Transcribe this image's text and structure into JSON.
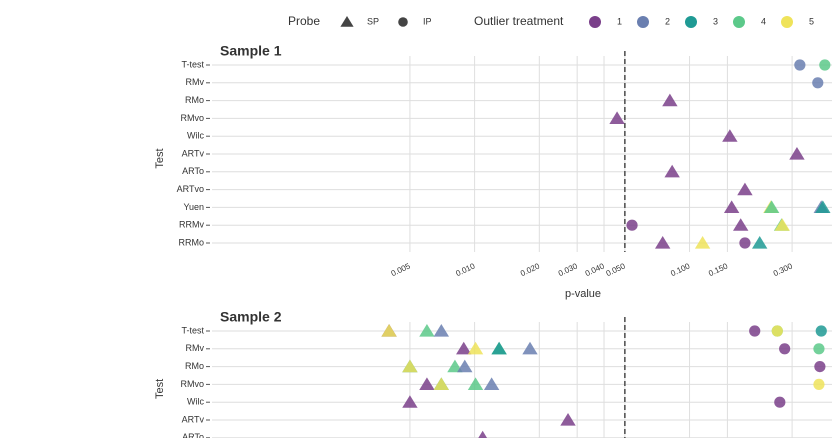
{
  "legend": {
    "probe_title": "Probe",
    "probes": [
      {
        "name": "SP",
        "shape": "triangle"
      },
      {
        "name": "IP",
        "shape": "circle"
      }
    ],
    "treatment_title": "Outlier treatment",
    "treatments": [
      {
        "name": "1",
        "color": "#7a3f8a"
      },
      {
        "name": "2",
        "color": "#6a7fb0"
      },
      {
        "name": "3",
        "color": "#1f9a94"
      },
      {
        "name": "4",
        "color": "#5cc98a"
      },
      {
        "name": "5",
        "color": "#efe35a"
      }
    ]
  },
  "chart_data": [
    {
      "type": "scatter",
      "title": "Sample 1",
      "xlabel": "p-value",
      "ylabel": "Test",
      "log_x": true,
      "grid": true,
      "threshold": 0.05,
      "xlim": [
        0.0006,
        0.46
      ],
      "xticks": [
        0.005,
        {
          "value": 0.01,
          "label": "0.010"
        },
        {
          "value": 0.02,
          "label": "0.020"
        },
        {
          "value": 0.03,
          "label": "0.030"
        },
        {
          "value": 0.04,
          "label": "0.040"
        },
        {
          "value": 0.05,
          "label": "0.050"
        },
        {
          "value": 0.1,
          "label": "0.100"
        },
        {
          "value": 0.15,
          "label": "0.150"
        },
        {
          "value": 0.3,
          "label": "0.300"
        }
      ],
      "categories": [
        "T-test",
        "RMv",
        "RMo",
        "RMvo",
        "Wilc",
        "ARTv",
        "ARTo",
        "ARTvo",
        "Yuen",
        "RRMv",
        "RRMo"
      ],
      "points": [
        {
          "test": "T-test",
          "p": 0.326,
          "probe": "IP",
          "treatment": "2"
        },
        {
          "test": "T-test",
          "p": 0.426,
          "probe": "IP",
          "treatment": "4"
        },
        {
          "test": "RMv",
          "p": 0.395,
          "probe": "IP",
          "treatment": "2"
        },
        {
          "test": "RMo",
          "p": 0.081,
          "probe": "SP",
          "treatment": "1"
        },
        {
          "test": "RMvo",
          "p": 0.046,
          "probe": "SP",
          "treatment": "1"
        },
        {
          "test": "Wilc",
          "p": 0.154,
          "probe": "SP",
          "treatment": "1"
        },
        {
          "test": "ARTv",
          "p": 0.316,
          "probe": "SP",
          "treatment": "1"
        },
        {
          "test": "ARTo",
          "p": 0.083,
          "probe": "SP",
          "treatment": "1"
        },
        {
          "test": "ARTvo",
          "p": 0.181,
          "probe": "SP",
          "treatment": "1"
        },
        {
          "test": "Yuen",
          "p": 0.157,
          "probe": "SP",
          "treatment": "1"
        },
        {
          "test": "Yuen",
          "p": 0.239,
          "probe": "SP",
          "treatment": "5"
        },
        {
          "test": "Yuen",
          "p": 0.241,
          "probe": "SP",
          "treatment": "4"
        },
        {
          "test": "Yuen",
          "p": 0.41,
          "probe": "SP",
          "treatment": "2"
        },
        {
          "test": "Yuen",
          "p": 0.417,
          "probe": "SP",
          "treatment": "3"
        },
        {
          "test": "RRMv",
          "p": 0.054,
          "probe": "IP",
          "treatment": "1"
        },
        {
          "test": "RRMv",
          "p": 0.173,
          "probe": "SP",
          "treatment": "1"
        },
        {
          "test": "RRMv",
          "p": 0.268,
          "probe": "SP",
          "treatment": "4"
        },
        {
          "test": "RRMv",
          "p": 0.27,
          "probe": "SP",
          "treatment": "5"
        },
        {
          "test": "RRMo",
          "p": 0.075,
          "probe": "SP",
          "treatment": "1"
        },
        {
          "test": "RRMo",
          "p": 0.115,
          "probe": "SP",
          "treatment": "5"
        },
        {
          "test": "RRMo",
          "p": 0.181,
          "probe": "IP",
          "treatment": "1"
        },
        {
          "test": "RRMo",
          "p": 0.212,
          "probe": "SP",
          "treatment": "3"
        }
      ]
    },
    {
      "type": "scatter",
      "title": "Sample 2",
      "ylabel": "Test",
      "log_x": true,
      "grid": true,
      "threshold": 0.05,
      "xlim": [
        0.0006,
        0.46
      ],
      "categories": [
        "T-test",
        "RMv",
        "RMo",
        "RMvo",
        "Wilc",
        "ARTv",
        "ARTo"
      ],
      "points": [
        {
          "test": "T-test",
          "p": 0.004,
          "probe": "SP",
          "treatment": "1"
        },
        {
          "test": "T-test",
          "p": 0.004,
          "probe": "SP",
          "treatment": "5"
        },
        {
          "test": "T-test",
          "p": 0.006,
          "probe": "SP",
          "treatment": "4"
        },
        {
          "test": "T-test",
          "p": 0.007,
          "probe": "SP",
          "treatment": "2"
        },
        {
          "test": "T-test",
          "p": 0.201,
          "probe": "IP",
          "treatment": "1"
        },
        {
          "test": "T-test",
          "p": 0.256,
          "probe": "IP",
          "treatment": "4"
        },
        {
          "test": "T-test",
          "p": 0.256,
          "probe": "IP",
          "treatment": "5"
        },
        {
          "test": "T-test",
          "p": 0.41,
          "probe": "IP",
          "treatment": "3"
        },
        {
          "test": "RMv",
          "p": 0.0089,
          "probe": "SP",
          "treatment": "1"
        },
        {
          "test": "RMv",
          "p": 0.0101,
          "probe": "SP",
          "treatment": "5"
        },
        {
          "test": "RMv",
          "p": 0.013,
          "probe": "SP",
          "treatment": "4"
        },
        {
          "test": "RMv",
          "p": 0.013,
          "probe": "SP",
          "treatment": "3"
        },
        {
          "test": "RMv",
          "p": 0.0181,
          "probe": "SP",
          "treatment": "2"
        },
        {
          "test": "RMv",
          "p": 0.277,
          "probe": "IP",
          "treatment": "1"
        },
        {
          "test": "RMv",
          "p": 0.4,
          "probe": "IP",
          "treatment": "4"
        },
        {
          "test": "RMo",
          "p": 0.005,
          "probe": "SP",
          "treatment": "3"
        },
        {
          "test": "RMo",
          "p": 0.005,
          "probe": "SP",
          "treatment": "5"
        },
        {
          "test": "RMo",
          "p": 0.0081,
          "probe": "SP",
          "treatment": "4"
        },
        {
          "test": "RMo",
          "p": 0.009,
          "probe": "SP",
          "treatment": "2"
        },
        {
          "test": "RMo",
          "p": 0.404,
          "probe": "IP",
          "treatment": "1"
        },
        {
          "test": "RMvo",
          "p": 0.006,
          "probe": "SP",
          "treatment": "1"
        },
        {
          "test": "RMvo",
          "p": 0.007,
          "probe": "SP",
          "treatment": "3"
        },
        {
          "test": "RMvo",
          "p": 0.007,
          "probe": "SP",
          "treatment": "5"
        },
        {
          "test": "RMvo",
          "p": 0.0101,
          "probe": "SP",
          "treatment": "4"
        },
        {
          "test": "RMvo",
          "p": 0.012,
          "probe": "SP",
          "treatment": "2"
        },
        {
          "test": "RMvo",
          "p": 0.4,
          "probe": "IP",
          "treatment": "5"
        },
        {
          "test": "Wilc",
          "p": 0.005,
          "probe": "SP",
          "treatment": "1"
        },
        {
          "test": "Wilc",
          "p": 0.263,
          "probe": "IP",
          "treatment": "1"
        },
        {
          "test": "ARTv",
          "p": 0.0272,
          "probe": "SP",
          "treatment": "1"
        },
        {
          "test": "ARTo",
          "p": 0.0109,
          "probe": "SP",
          "treatment": "1"
        }
      ]
    }
  ]
}
